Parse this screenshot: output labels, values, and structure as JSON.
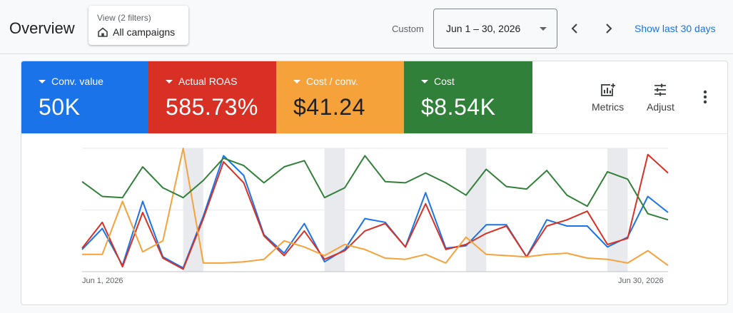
{
  "header": {
    "title": "Overview",
    "view": {
      "sub": "View (2 filters)",
      "main": "All campaigns"
    },
    "custom_label": "Custom",
    "date_range": "Jun 1 – 30, 2026",
    "show_last": "Show last 30 days"
  },
  "metrics": [
    {
      "label": "Conv. value",
      "value": "50K",
      "color": "#1a73e8"
    },
    {
      "label": "Actual ROAS",
      "value": "585.73%",
      "color": "#d93025"
    },
    {
      "label": "Cost / conv.",
      "value": "$41.24",
      "color": "#f6a23b"
    },
    {
      "label": "Cost",
      "value": "$8.54K",
      "color": "#318039"
    }
  ],
  "tools": {
    "metrics_label": "Metrics",
    "adjust_label": "Adjust"
  },
  "icons": [
    "home-icon",
    "chevron-left-icon",
    "chevron-right-icon",
    "add-chart-icon",
    "tune-icon",
    "more-vert-icon"
  ],
  "chart_data": {
    "type": "line",
    "x_labels": {
      "start": "Jun 1, 2026",
      "end": "Jun 30, 2026"
    },
    "x": [
      1,
      2,
      3,
      4,
      5,
      6,
      7,
      8,
      9,
      10,
      11,
      12,
      13,
      14,
      15,
      16,
      17,
      18,
      19,
      20,
      21,
      22,
      23,
      24,
      25,
      26,
      27,
      28,
      29,
      30
    ],
    "ylim": [
      0,
      100
    ],
    "weekend_bands": [
      [
        6,
        7
      ],
      [
        13,
        14
      ],
      [
        20,
        21
      ],
      [
        27,
        28
      ]
    ],
    "series": [
      {
        "color": "#1a73e8",
        "values": [
          18,
          35,
          5,
          57,
          12,
          3,
          45,
          94,
          78,
          30,
          15,
          39,
          8,
          18,
          43,
          40,
          20,
          64,
          19,
          21,
          38,
          38,
          12,
          42,
          37,
          37,
          20,
          28,
          61,
          48
        ]
      },
      {
        "color": "#d93025",
        "values": [
          19,
          40,
          4,
          48,
          11,
          2,
          43,
          89,
          72,
          29,
          13,
          33,
          10,
          17,
          33,
          39,
          20,
          55,
          18,
          22,
          31,
          37,
          12,
          37,
          42,
          49,
          22,
          27,
          95,
          80
        ]
      },
      {
        "color": "#f6a23b",
        "values": [
          14,
          14,
          57,
          16,
          25,
          100,
          7,
          7,
          8,
          10,
          25,
          20,
          13,
          22,
          18,
          11,
          10,
          14,
          7,
          28,
          14,
          13,
          12,
          14,
          15,
          11,
          10,
          7,
          17,
          5
        ]
      },
      {
        "color": "#318039",
        "values": [
          73,
          61,
          60,
          85,
          68,
          60,
          74,
          92,
          86,
          72,
          85,
          90,
          60,
          68,
          94,
          73,
          72,
          80,
          72,
          62,
          83,
          69,
          67,
          82,
          62,
          53,
          81,
          75,
          47,
          42
        ]
      }
    ]
  }
}
